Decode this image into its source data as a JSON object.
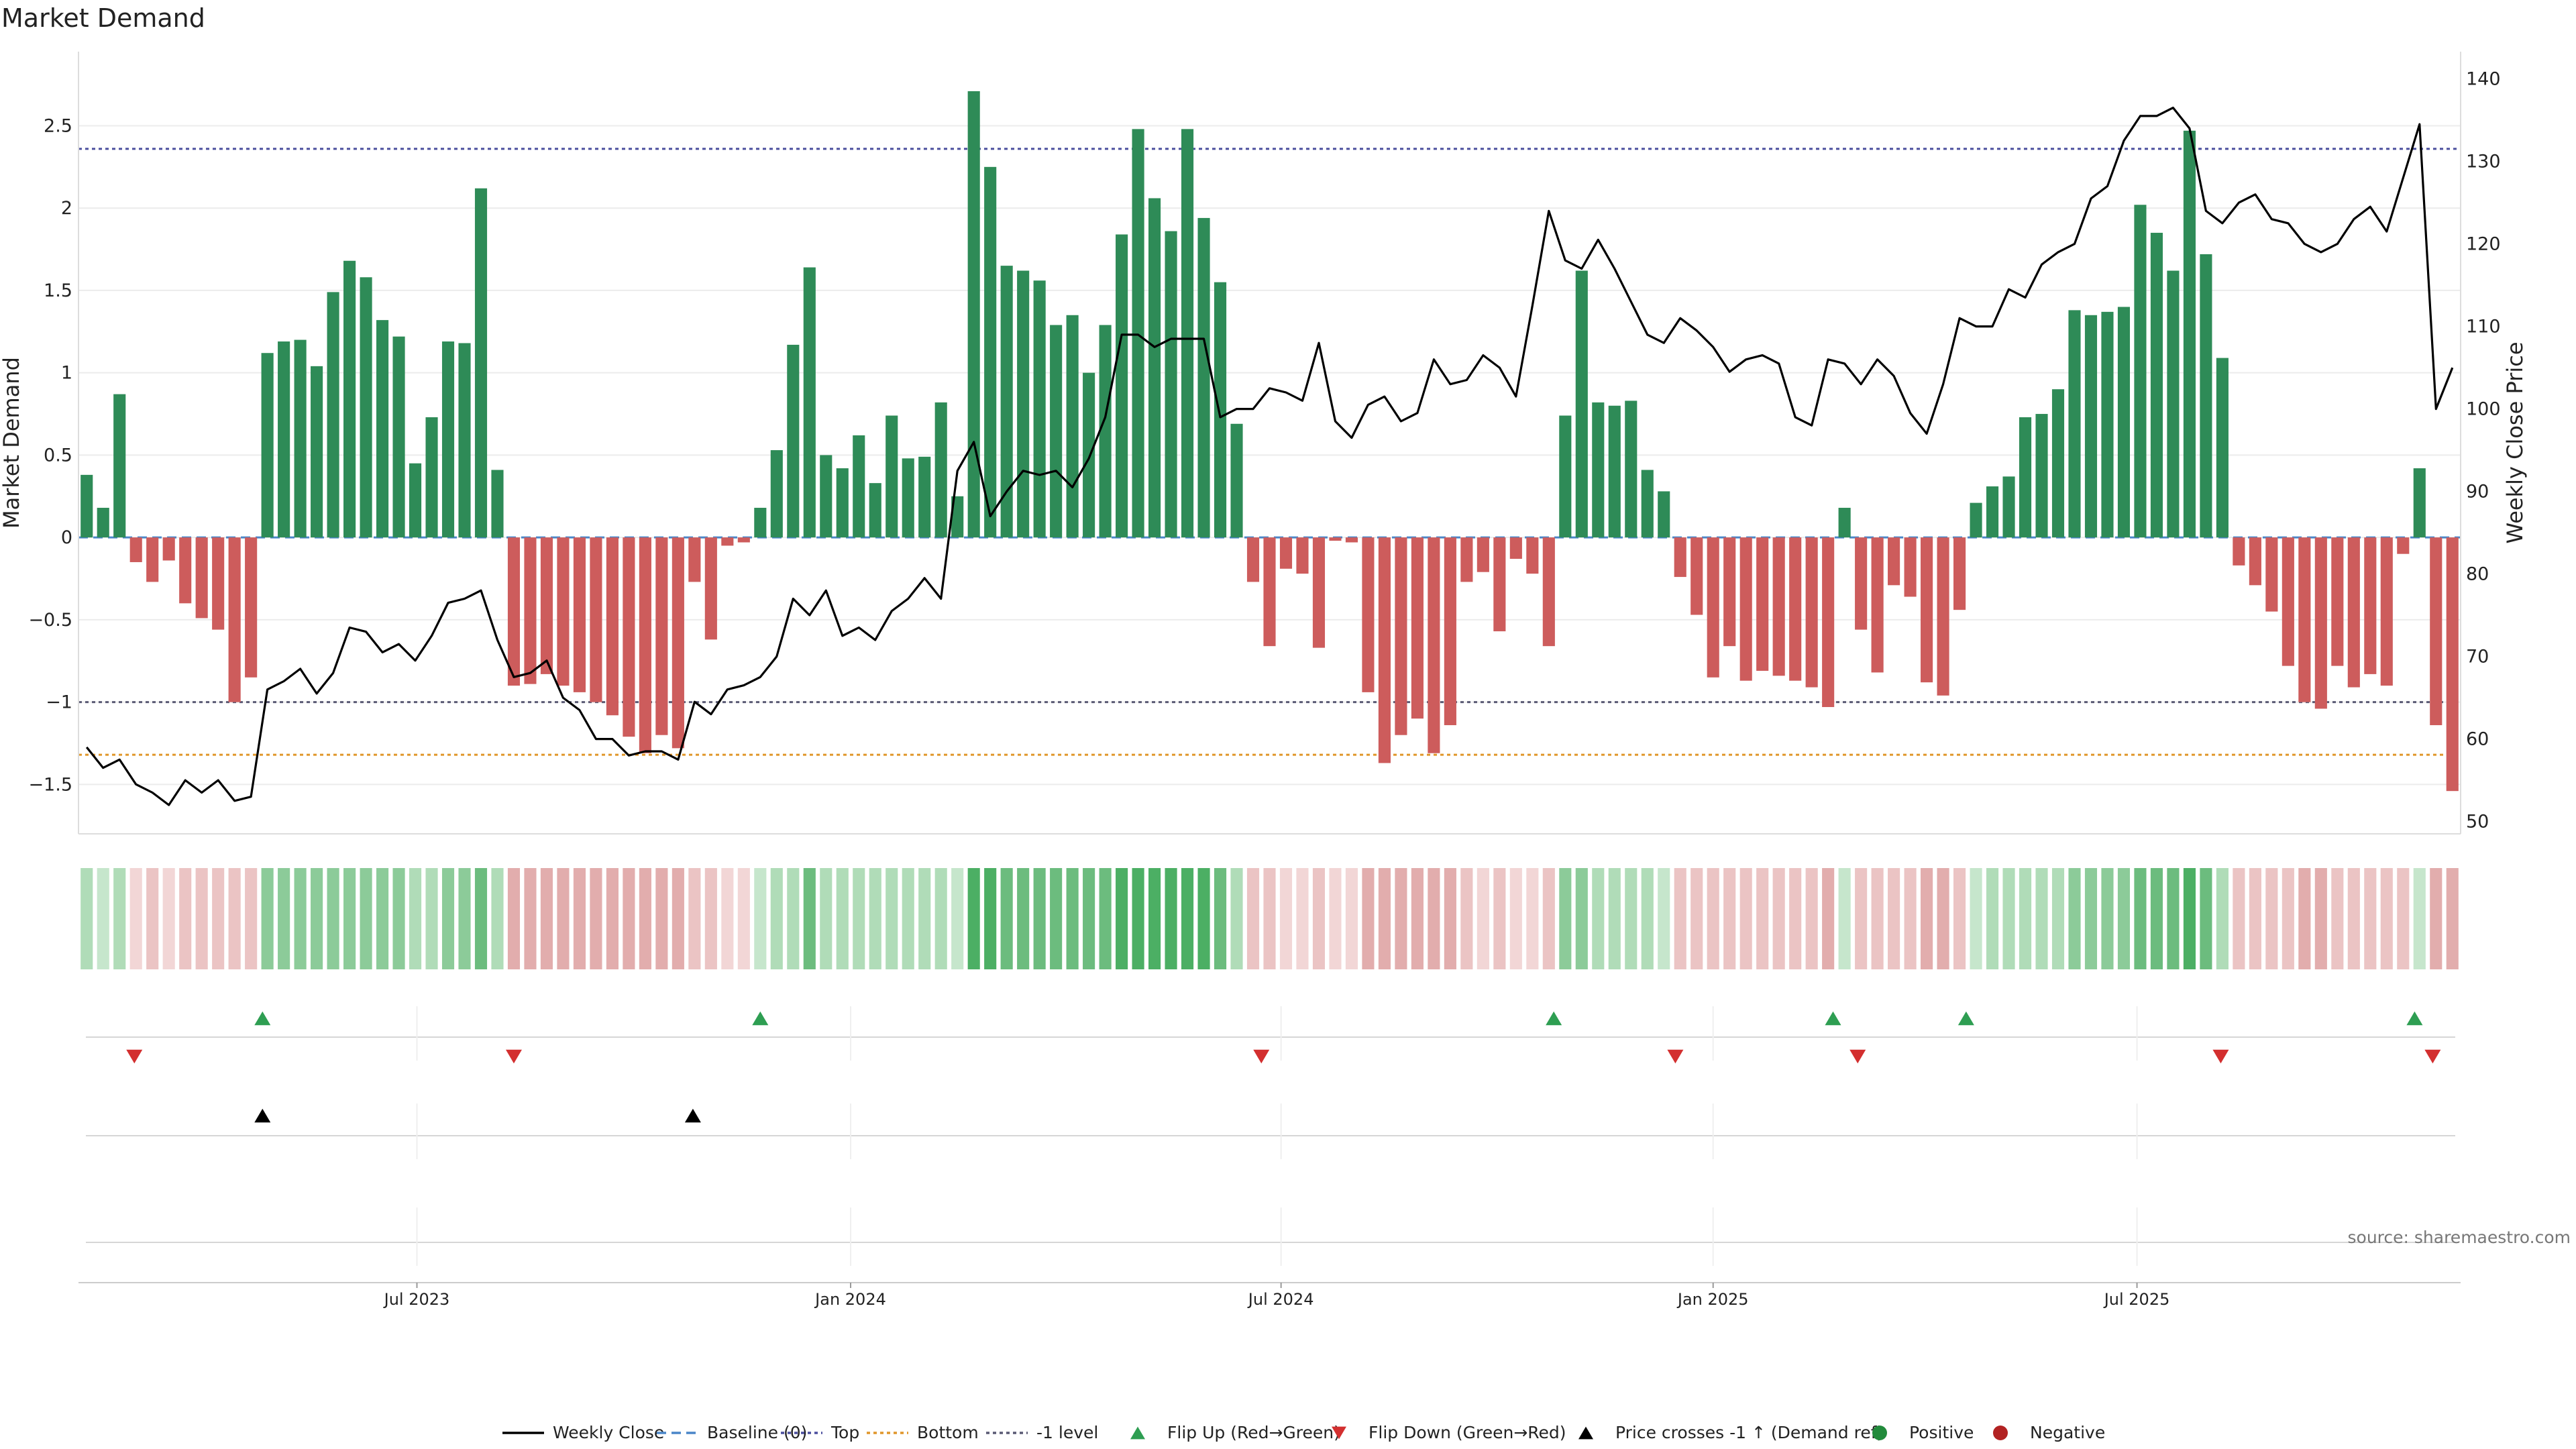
{
  "chart_data": {
    "type": "bar",
    "title": "Market Demand",
    "ylabel": "Market Demand",
    "y2label": "Weekly Close Price",
    "ylim": [
      -1.8,
      2.95
    ],
    "y2lim": [
      48.5,
      143.3
    ],
    "yticks": [
      -1.5,
      -1,
      -0.5,
      0,
      0.5,
      1,
      1.5,
      2,
      2.5
    ],
    "ytick_labels": [
      "−1.5",
      "−1",
      "−0.5",
      "0",
      "0.5",
      "1",
      "1.5",
      "2",
      "2.5"
    ],
    "y2ticks": [
      50,
      60,
      70,
      80,
      90,
      100,
      110,
      120,
      130,
      140
    ],
    "y2tick_labels": [
      "50",
      "60",
      "70",
      "80",
      "90",
      "100",
      "110",
      "120",
      "130",
      "140"
    ],
    "x_range_weeks": [
      0,
      145
    ],
    "xticks": [
      {
        "label": "Jul 2023",
        "week": 20.6
      },
      {
        "label": "Jan 2024",
        "week": 47.0
      },
      {
        "label": "Jul 2024",
        "week": 73.2
      },
      {
        "label": "Jan 2025",
        "week": 99.5
      },
      {
        "label": "Jul 2025",
        "week": 125.3
      }
    ],
    "ref_lines": {
      "top": 2.36,
      "minus_one": -1.0,
      "bottom": -1.32
    },
    "demand": [
      0.38,
      0.18,
      0.87,
      -0.15,
      -0.27,
      -0.14,
      -0.4,
      -0.49,
      -0.56,
      -1.0,
      -0.85,
      1.12,
      1.19,
      1.2,
      1.04,
      1.49,
      1.68,
      1.58,
      1.32,
      1.22,
      0.45,
      0.73,
      1.19,
      1.18,
      2.12,
      0.41,
      -0.9,
      -0.89,
      -0.83,
      -0.9,
      -0.94,
      -1.0,
      -1.08,
      -1.21,
      -1.31,
      -1.2,
      -1.28,
      -0.27,
      -0.62,
      -0.05,
      -0.03,
      0.18,
      0.53,
      1.17,
      1.64,
      0.5,
      0.42,
      0.62,
      0.33,
      0.74,
      0.48,
      0.49,
      0.82,
      0.25,
      2.71,
      2.25,
      1.65,
      1.62,
      1.56,
      1.29,
      1.35,
      1.0,
      1.29,
      1.84,
      2.48,
      2.06,
      1.86,
      2.48,
      1.94,
      1.55,
      0.69,
      -0.27,
      -0.66,
      -0.19,
      -0.22,
      -0.67,
      -0.02,
      -0.03,
      -0.94,
      -1.37,
      -1.2,
      -1.1,
      -1.31,
      -1.14,
      -0.27,
      -0.21,
      -0.57,
      -0.13,
      -0.22,
      -0.66,
      0.74,
      1.62,
      0.82,
      0.8,
      0.83,
      0.41,
      0.28,
      -0.24,
      -0.47,
      -0.85,
      -0.66,
      -0.87,
      -0.81,
      -0.84,
      -0.87,
      -0.91,
      -1.03,
      0.18,
      -0.56,
      -0.82,
      -0.29,
      -0.36,
      -0.88,
      -0.96,
      -0.44,
      0.21,
      0.31,
      0.37,
      0.73,
      0.75,
      0.9,
      1.38,
      1.35,
      1.37,
      1.4,
      2.02,
      1.85,
      1.62,
      2.47,
      1.72,
      1.09,
      -0.17,
      -0.29,
      -0.45,
      -0.78,
      -1.0,
      -1.04,
      -0.78,
      -0.91,
      -0.83,
      -0.9,
      -0.1,
      0.42,
      -1.14,
      -1.54
    ],
    "weekly_close": [
      59,
      56.5,
      57.5,
      54.5,
      53.5,
      52,
      55,
      53.5,
      55,
      52.5,
      53,
      66,
      67,
      68.5,
      65.5,
      68,
      73.5,
      73,
      70.5,
      71.5,
      69.5,
      72.5,
      76.5,
      77,
      78,
      72,
      67.5,
      68,
      69.5,
      65,
      63.5,
      60,
      60,
      58,
      58.5,
      58.5,
      57.5,
      64.5,
      63,
      66,
      66.5,
      67.5,
      70,
      77,
      75,
      78,
      72.5,
      73.5,
      72,
      75.5,
      77,
      79.5,
      77,
      92.5,
      96,
      87,
      90,
      92.5,
      92,
      92.5,
      90.5,
      94,
      99,
      109,
      109,
      107.5,
      108.5,
      108.5,
      108.5,
      99,
      100,
      100,
      102.5,
      102,
      101,
      108,
      98.5,
      96.5,
      100.5,
      101.5,
      98.5,
      99.5,
      106,
      103,
      103.5,
      106.5,
      105,
      101.5,
      112.5,
      124,
      118,
      117,
      120.5,
      117,
      113,
      109,
      108,
      111,
      109.5,
      107.5,
      104.5,
      106,
      106.5,
      105.5,
      99,
      98,
      106,
      105.5,
      103,
      106,
      104,
      99.5,
      97,
      103,
      111,
      110,
      110,
      114.5,
      113.5,
      117.5,
      119,
      120,
      125.5,
      127,
      132.5,
      135.5,
      135.5,
      136.5,
      134,
      124,
      122.5,
      125,
      126,
      123,
      122.5,
      120,
      119,
      120,
      123,
      124.5,
      121.5,
      128,
      134.5,
      100,
      105
    ],
    "shade_levels": [
      2,
      1,
      2,
      -1,
      -2,
      -1,
      -2,
      -2,
      -2,
      -2,
      -2,
      3,
      3,
      3,
      3,
      3,
      3,
      3,
      3,
      3,
      2,
      2,
      3,
      3,
      4,
      2,
      -3,
      -3,
      -3,
      -3,
      -3,
      -3,
      -3,
      -3,
      -3,
      -3,
      -3,
      -2,
      -2,
      -1,
      -1,
      1,
      2,
      2,
      4,
      2,
      2,
      2,
      2,
      2,
      2,
      2,
      2,
      1,
      5,
      5,
      4,
      4,
      4,
      4,
      4,
      4,
      4,
      5,
      5,
      5,
      5,
      5,
      5,
      4,
      2,
      -2,
      -2,
      -1,
      -1,
      -2,
      -1,
      -1,
      -3,
      -3,
      -3,
      -3,
      -3,
      -3,
      -2,
      -1,
      -2,
      -1,
      -1,
      -2,
      3,
      3,
      2,
      2,
      2,
      2,
      1,
      -2,
      -2,
      -2,
      -2,
      -2,
      -2,
      -2,
      -2,
      -2,
      -3,
      1,
      -2,
      -2,
      -2,
      -2,
      -3,
      -3,
      -2,
      1,
      2,
      2,
      2,
      2,
      2,
      3,
      3,
      3,
      3,
      4,
      4,
      4,
      5,
      4,
      2,
      -2,
      -2,
      -2,
      -2,
      -3,
      -3,
      -2,
      -2,
      -2,
      -2,
      -2,
      1,
      -3,
      -3
    ],
    "events": {
      "flip_up": [
        11.2,
        41.5,
        89.8,
        106.8,
        114.9,
        142.2
      ],
      "flip_down": [
        3.4,
        26.5,
        72.0,
        97.2,
        108.3,
        130.4,
        143.3
      ],
      "price_cross_minus1_up": [
        11.2,
        37.4
      ]
    },
    "source": "source: sharemaestro.com",
    "legend": [
      {
        "label": "Weekly Close",
        "kind": "line",
        "color": "#000000"
      },
      {
        "label": "Baseline (0)",
        "kind": "dash",
        "color": "#4a86c8"
      },
      {
        "label": "Top",
        "kind": "dot",
        "color": "#4b4f9e"
      },
      {
        "label": "Bottom",
        "kind": "dot",
        "color": "#e0962a"
      },
      {
        "label": "-1 level",
        "kind": "dot",
        "color": "#5a5a74"
      },
      {
        "label": "Flip Up (Red→Green)",
        "kind": "tri-up",
        "color": "#2e9e52"
      },
      {
        "label": "Flip Down (Green→Red)",
        "kind": "tri-down",
        "color": "#d32f2f"
      },
      {
        "label": "Price crosses -1 ↑ (Demand ref)",
        "kind": "tri-up",
        "color": "#000000"
      },
      {
        "label": "Positive",
        "kind": "dot-marker",
        "color": "#228b3c"
      },
      {
        "label": "Negative",
        "kind": "dot-marker",
        "color": "#b22222"
      }
    ],
    "colors": {
      "positive": "#2e8b57",
      "negative": "#cd5c5c",
      "top": "#4b4f9e",
      "bottom": "#e0962a",
      "minus_one": "#5a5a74",
      "baseline": "#4a86c8"
    }
  }
}
